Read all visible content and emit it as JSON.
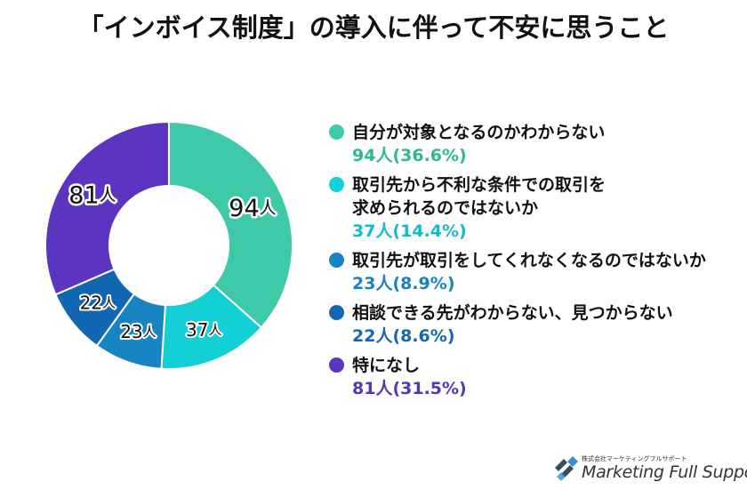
{
  "title": "「インボイス制度」の導入に伴って不安に思うこと",
  "chart_data": {
    "type": "pie",
    "categories": [
      "自分が対象となるのかわからない",
      "取引先から不利な条件での取引を求められるのではないか",
      "取引先が取引をしてくれなくなるのではないか",
      "相談できる先がわからない、見つからない",
      "特になし"
    ],
    "values": [
      94,
      37,
      23,
      22,
      81
    ],
    "unit": "人",
    "slice_labels": [
      "94人",
      "37人",
      "23人",
      "22人",
      "81人"
    ],
    "colors": [
      "#3ec9a8",
      "#14cfd3",
      "#1984c2",
      "#1167b2",
      "#5b34c0"
    ]
  },
  "legend": [
    {
      "label_lines": [
        "自分が対象となるのかわからない"
      ],
      "value": "94人(36.6%)",
      "dot_color": "#3ec9a8",
      "text_color": "#2fb896"
    },
    {
      "label_lines": [
        "取引先から不利な条件での取引を",
        "求められるのではないか"
      ],
      "value": "37人(14.4%)",
      "dot_color": "#14cfd3",
      "text_color": "#12bccb"
    },
    {
      "label_lines": [
        "取引先が取引をしてくれなくなるのではないか"
      ],
      "value": "23人(8.9%)",
      "dot_color": "#1984c2",
      "text_color": "#1a82c0"
    },
    {
      "label_lines": [
        "相談できる先がわからない、見つからない"
      ],
      "value": "22人(8.6%)",
      "dot_color": "#1167b2",
      "text_color": "#1467b0"
    },
    {
      "label_lines": [
        "特になし"
      ],
      "value": "81人(31.5%)",
      "dot_color": "#5b34c0",
      "text_color": "#5535b8"
    }
  ],
  "logo": {
    "subtitle": "株式会社マーケティングフルサポート",
    "name": "Marketing Full Support",
    "icon": "logo-mark-icon"
  }
}
